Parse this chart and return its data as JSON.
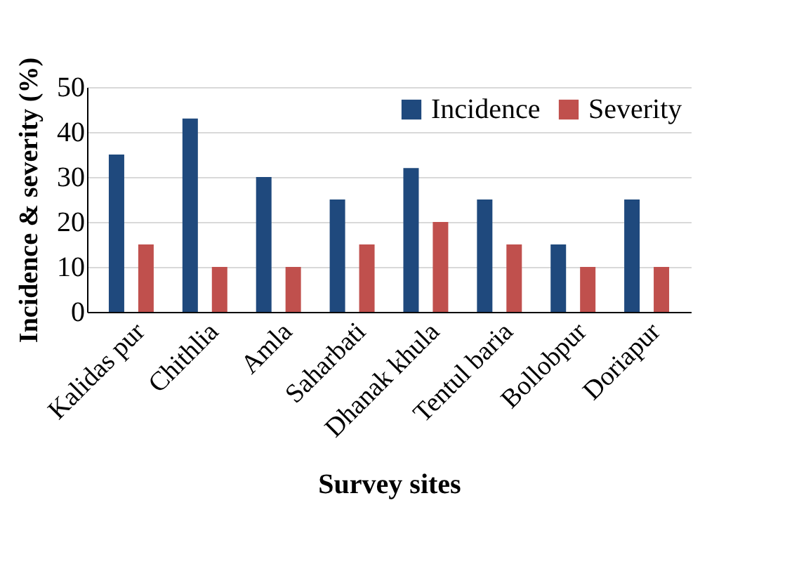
{
  "chart_data": {
    "type": "bar",
    "xlabel": "Survey sites",
    "ylabel": "Incidence & severity (%)",
    "categories": [
      "Kalidas pur",
      "Chithlia",
      "Amla",
      "Saharbati",
      "Dhanak khula",
      "Tentul baria",
      "Bollobpur",
      "Doriapur"
    ],
    "series": [
      {
        "name": "Incidence",
        "color": "#1f497d",
        "values": [
          35,
          43,
          30,
          25,
          32,
          25,
          15,
          25
        ]
      },
      {
        "name": "Severity",
        "color": "#c0504d",
        "values": [
          15,
          10,
          10,
          15,
          20,
          15,
          10,
          10
        ]
      }
    ],
    "ylim": [
      0,
      50
    ],
    "yticks": [
      0,
      10,
      20,
      30,
      40,
      50
    ],
    "grid": "y",
    "legend": "top right"
  }
}
